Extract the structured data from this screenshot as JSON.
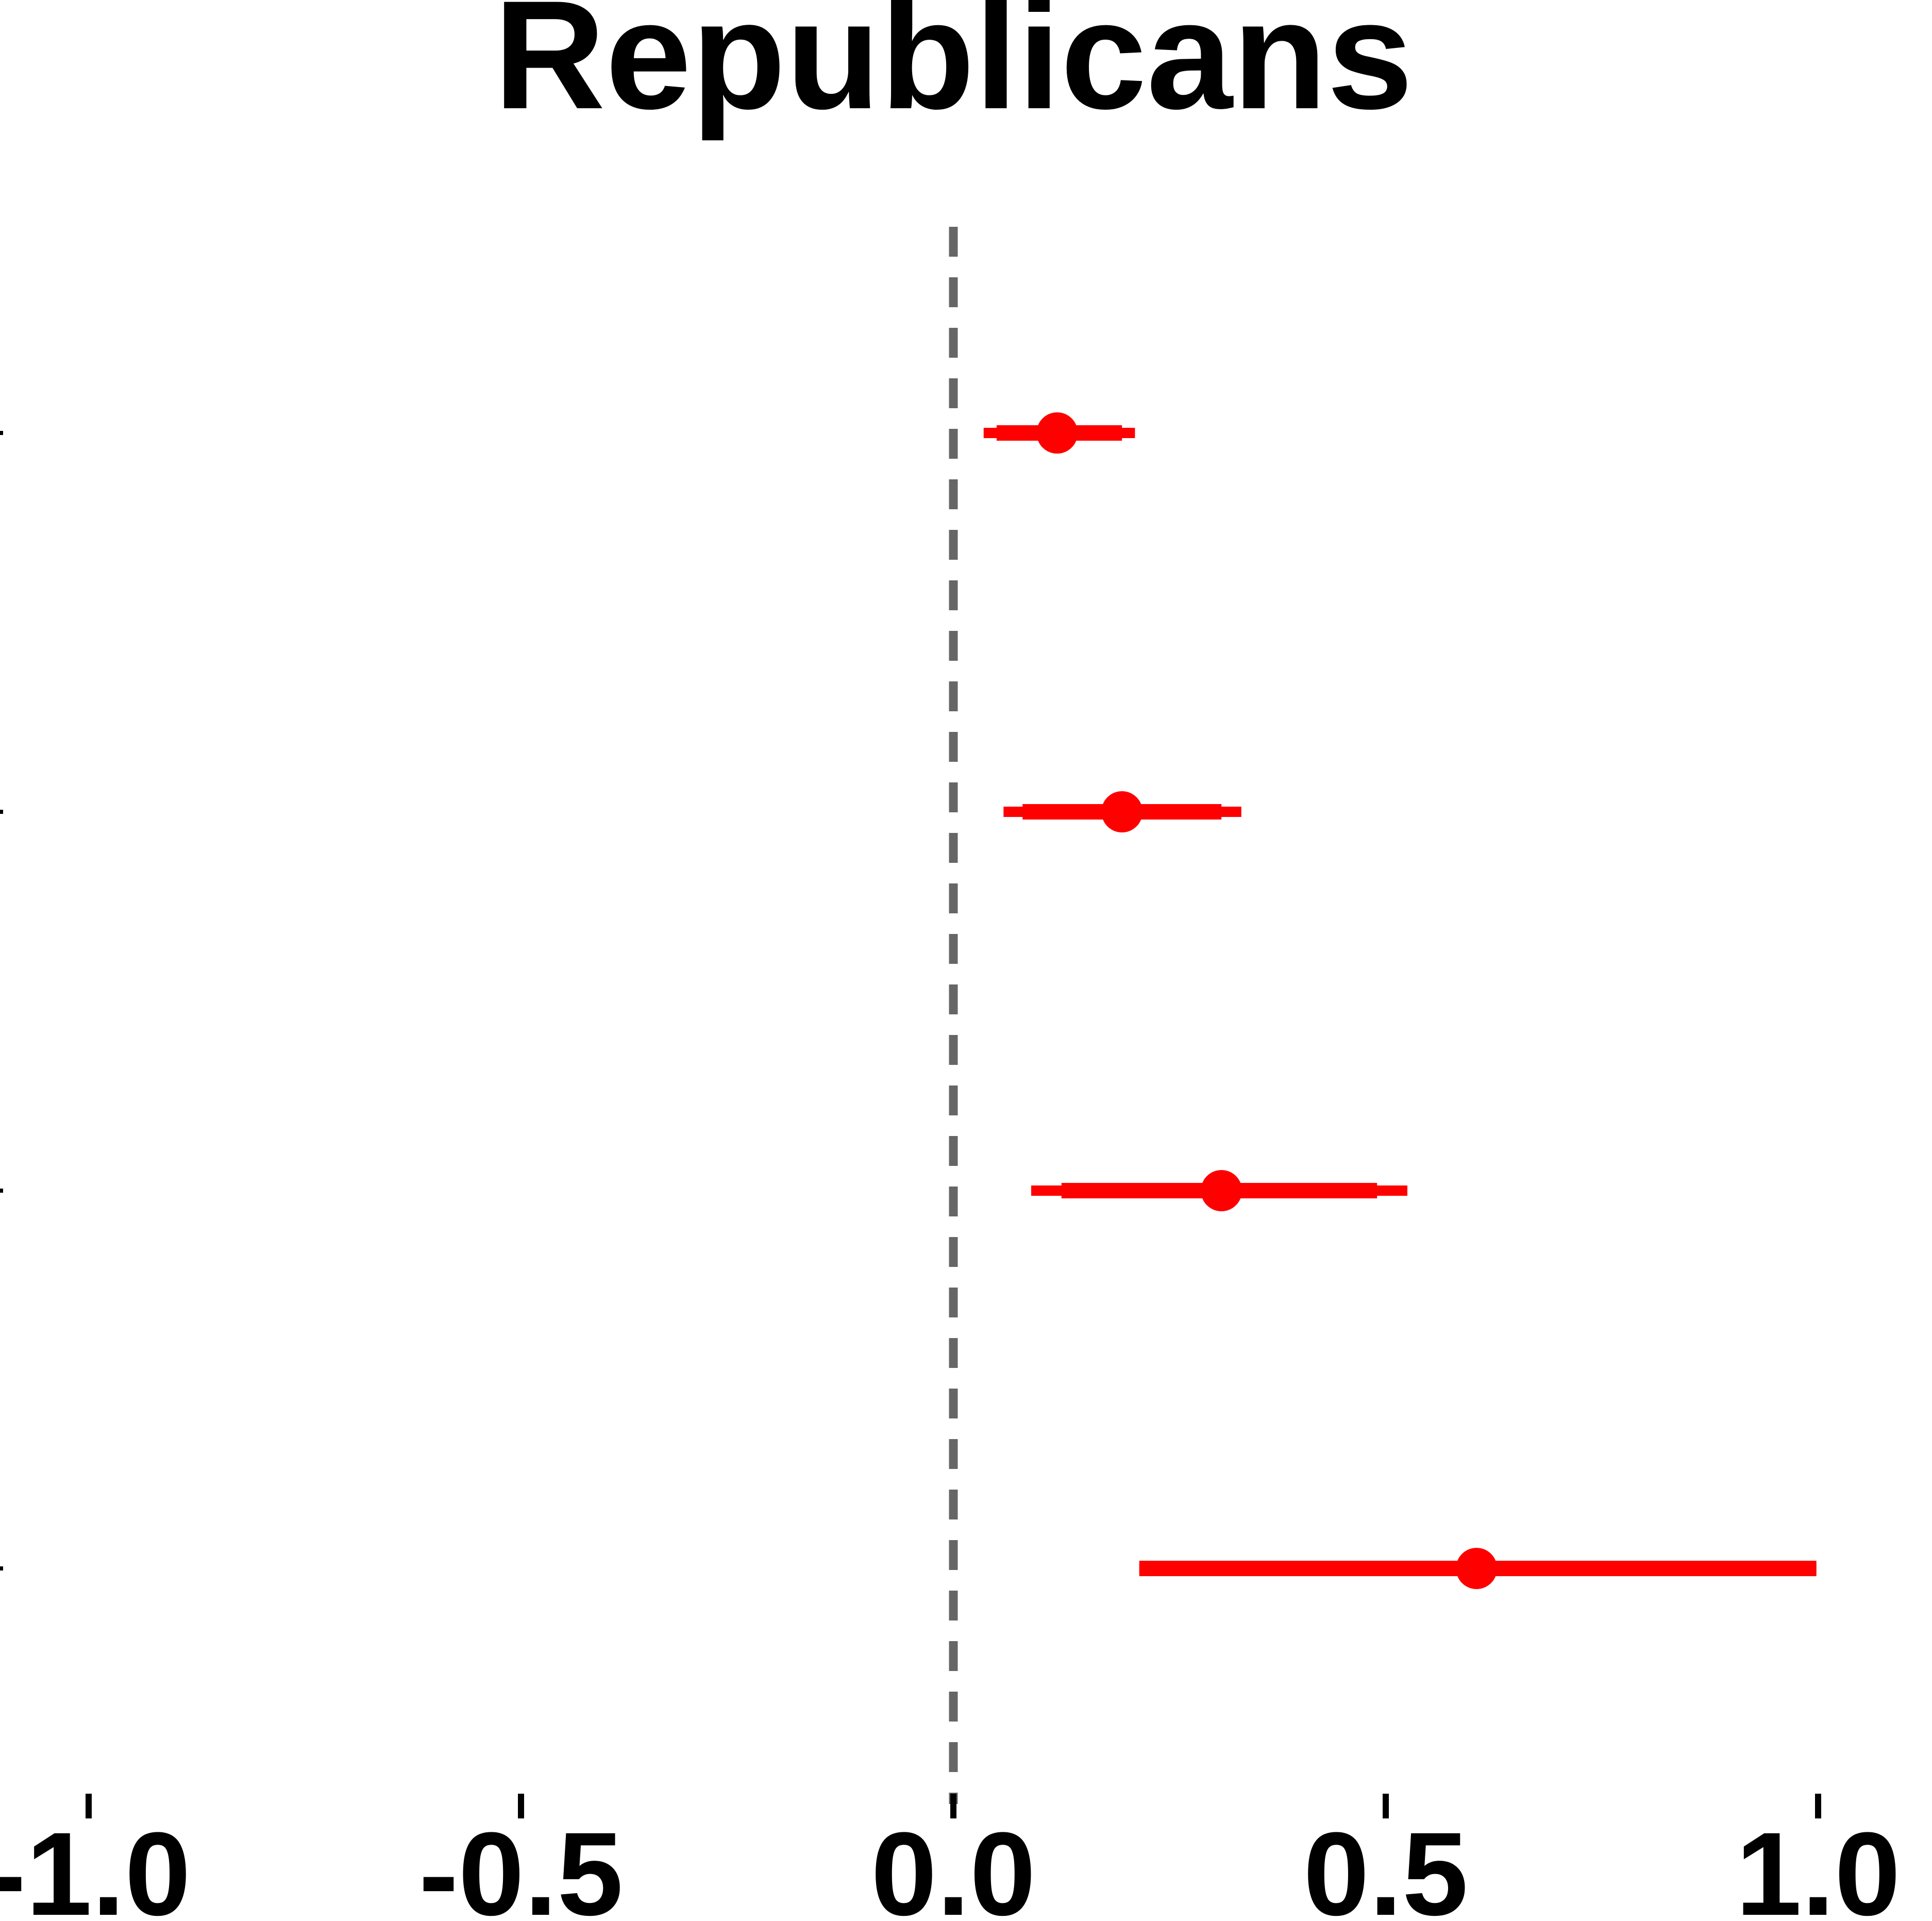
{
  "chart_data": {
    "type": "forest",
    "title": "Republicans",
    "xlabel": "",
    "ylabel": "",
    "xlim": [
      -1.1,
      1.1
    ],
    "x_ticks": [
      -1.0,
      -0.5,
      0.0,
      0.5,
      1.0
    ],
    "x_tick_labels": [
      "-1.0",
      "-0.5",
      "0.0",
      "0.5",
      "1.0"
    ],
    "reference_line": 0.0,
    "grid": false,
    "legend": "none",
    "color": "#ff0000",
    "reference_color": "#666666",
    "points": [
      {
        "estimate": 0.12,
        "ci90": [
          0.05,
          0.195
        ],
        "ci95": [
          0.035,
          0.21
        ]
      },
      {
        "estimate": 0.195,
        "ci90": [
          0.08,
          0.31
        ],
        "ci95": [
          0.058,
          0.333
        ]
      },
      {
        "estimate": 0.31,
        "ci90": [
          0.125,
          0.49
        ],
        "ci95": [
          0.09,
          0.525
        ]
      },
      {
        "estimate": 0.605,
        "ci90": [
          0.215,
          0.998
        ],
        "ci95": [
          0.215,
          0.998
        ]
      }
    ]
  }
}
